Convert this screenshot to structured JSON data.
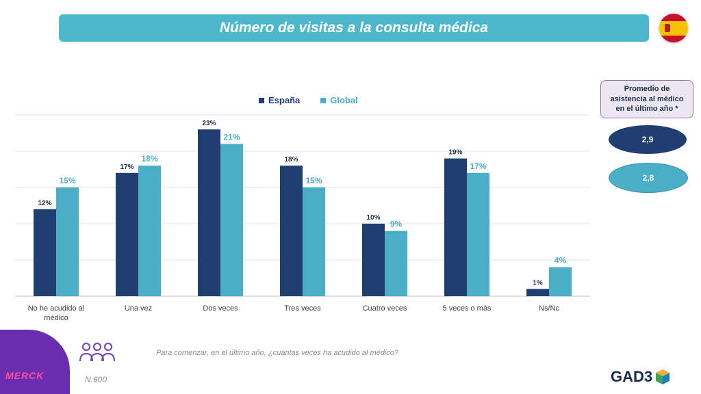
{
  "header": {
    "title": "Número de visitas a la consulta médica"
  },
  "colors": {
    "espana": "#1f3f73",
    "global": "#4aaec6",
    "title_bar": "#4db8cc",
    "merck": "#6a2cb0"
  },
  "chart_data": {
    "type": "bar",
    "title": "",
    "categories": [
      "No he acudido al médico",
      "Una vez",
      "Dos veces",
      "Tres veces",
      "Cuatro veces",
      "5 veces o más",
      "Ns/Nc"
    ],
    "series": [
      {
        "name": "España",
        "values": [
          12,
          17,
          23,
          18,
          10,
          19,
          1
        ],
        "labels": [
          "12%",
          "17%",
          "23%",
          "18%",
          "10%",
          "19%",
          "1%"
        ]
      },
      {
        "name": "Global",
        "values": [
          15,
          18,
          21,
          15,
          9,
          17,
          4
        ],
        "labels": [
          "15%",
          "18%",
          "21%",
          "15%",
          "9%",
          "17%",
          "4%"
        ]
      }
    ],
    "ylim": [
      0,
      25
    ],
    "grid": true,
    "legend_position": "top-center"
  },
  "side_panel": {
    "title": "Promedio de asistencia al médico en el último año *",
    "espana_value": "2,9",
    "global_value": "2,8"
  },
  "footer": {
    "brand": "MERCK",
    "sample": "N:600",
    "question": "Para comenzar, en el último año, ¿cuántas veces ha acudido al médico?",
    "logo_text": "GAD3"
  },
  "icons": {
    "people": "group-people-icon",
    "flag": "spain-flag-icon",
    "cube": "gad3-cube-icon"
  }
}
